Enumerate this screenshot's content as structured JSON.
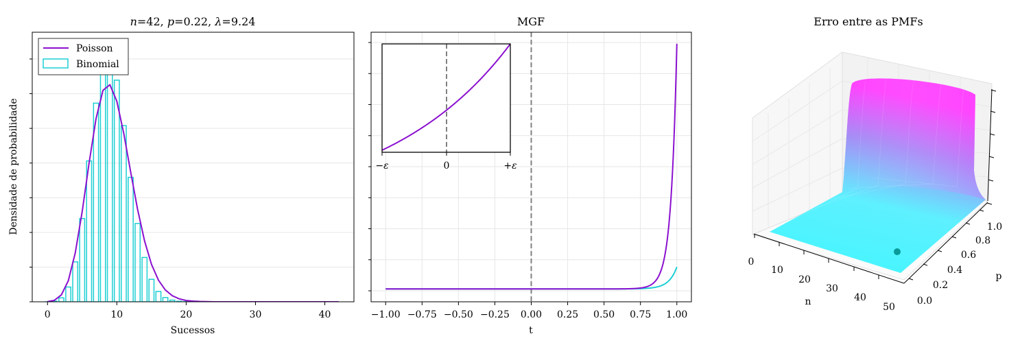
{
  "colors": {
    "poisson": "#8b10cf",
    "binomial": "#1ccfd3",
    "grid": "#e6e6e6",
    "vline": "#808080",
    "surface_low": "#3ff7ff",
    "surface_high": "#ff40ff",
    "marker": "#0a9a9a"
  },
  "chart_data": [
    {
      "type": "bar",
      "title_n": "n",
      "title_n_val": "=42, ",
      "title_p": "p",
      "title_p_val": "=0.22, ",
      "title_l": "λ",
      "title_l_val": "=9.24",
      "xlabel": "Sucessos",
      "ylabel": "Densidade de probabilidade",
      "xlim": [
        -2.2,
        44.2
      ],
      "ylim": [
        0,
        0.1642
      ],
      "xticks": [
        "0",
        "10",
        "20",
        "30",
        "40"
      ],
      "xtick_values": [
        0,
        10,
        20,
        30,
        40
      ],
      "ytick_count": 8,
      "legend": {
        "position": "top-left",
        "items": [
          "Poisson",
          "Binomial"
        ]
      },
      "binomial": {
        "name": "Binomial",
        "x": [
          0,
          1,
          2,
          3,
          4,
          5,
          6,
          7,
          8,
          9,
          10,
          11,
          12,
          13,
          14,
          15,
          16,
          17,
          18,
          19,
          20,
          21,
          22
        ],
        "values": [
          3e-05,
          0.0004,
          0.0024,
          0.009,
          0.0243,
          0.0507,
          0.0858,
          0.121,
          0.145,
          0.1498,
          0.135,
          0.1073,
          0.0758,
          0.0477,
          0.027,
          0.0137,
          0.0063,
          0.0026,
          0.001,
          0.0003,
          0.0001,
          3e-05,
          1e-05
        ]
      },
      "poisson": {
        "name": "Poisson",
        "x": [
          0,
          1,
          2,
          3,
          4,
          5,
          6,
          7,
          8,
          9,
          10,
          11,
          12,
          13,
          14,
          15,
          16,
          17,
          18,
          19,
          20,
          21,
          22,
          23,
          24,
          25,
          26,
          27,
          28,
          29,
          30,
          31,
          32,
          33,
          34,
          35,
          36,
          37,
          38,
          39,
          40,
          41,
          42
        ],
        "values": [
          0.0001,
          0.0009,
          0.0042,
          0.0128,
          0.0297,
          0.0548,
          0.0845,
          0.1115,
          0.1288,
          0.1322,
          0.1222,
          0.1026,
          0.079,
          0.0562,
          0.0371,
          0.0228,
          0.0132,
          0.0072,
          0.0037,
          0.0018,
          0.0008,
          0.0004,
          0.0002,
          0.0001,
          0,
          0,
          0,
          0,
          0,
          0,
          0,
          0,
          0,
          0,
          0,
          0,
          0,
          0,
          0,
          0,
          0,
          0,
          0
        ]
      }
    },
    {
      "type": "line",
      "title": "MGF",
      "xlabel": "t",
      "xlim": [
        -1.1,
        1.1
      ],
      "xticks": [
        "−1.00",
        "−0.75",
        "−0.50",
        "−0.25",
        "0.00",
        "0.25",
        "0.50",
        "0.75",
        "1.00"
      ],
      "xtick_values": [
        -1.0,
        -0.75,
        -0.5,
        -0.25,
        0.0,
        0.25,
        0.5,
        0.75,
        1.0
      ],
      "ytick_count": 9,
      "series": [
        {
          "name": "Poisson",
          "function": "exp(9.24*(e^t-1))"
        },
        {
          "name": "Binomial",
          "function": "(1-0.22+0.22*e^t)^42"
        }
      ],
      "vline_x": 0,
      "inset": {
        "xticks": [
          "−ε",
          "0",
          "+ε"
        ],
        "series": [
          {
            "name": "Poisson",
            "function": "exp(9.24*(e^t-1))"
          }
        ]
      }
    },
    {
      "type": "surface",
      "title": "Erro entre as PMFs",
      "xlabel": "n",
      "ylabel": "p",
      "xticks": [
        "0",
        "10",
        "20",
        "30",
        "40",
        "50"
      ],
      "yticks": [
        "0.0",
        "0.2",
        "0.4",
        "0.6",
        "0.8",
        "1.0"
      ],
      "marker": {
        "n": 42,
        "p": 0.22
      }
    }
  ]
}
